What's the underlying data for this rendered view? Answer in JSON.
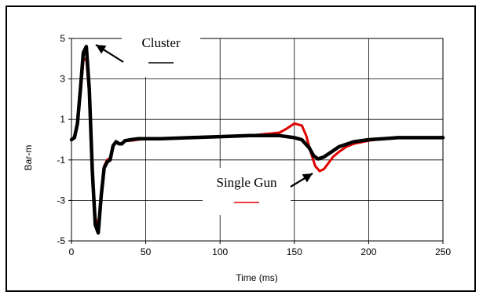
{
  "chart_data": {
    "type": "line",
    "title": "",
    "xlabel": "Time (ms)",
    "ylabel": "Bar-m",
    "xlim": [
      0,
      250
    ],
    "ylim": [
      -5,
      5
    ],
    "xticks": [
      "0",
      "50",
      "100",
      "150",
      "200",
      "250"
    ],
    "yticks": [
      "5",
      "3",
      "1",
      "-1",
      "-3",
      "-5"
    ],
    "grid": true,
    "legend": "inside, upper-left and center-right",
    "series": [
      {
        "name": "Cluster",
        "color": "#000000",
        "x": [
          0,
          2,
          4,
          6,
          8,
          10,
          12,
          14,
          16,
          18,
          20,
          22,
          24,
          26,
          28,
          30,
          32,
          34,
          36,
          40,
          45,
          50,
          60,
          80,
          100,
          120,
          140,
          150,
          155,
          160,
          163,
          166,
          170,
          175,
          180,
          190,
          200,
          210,
          220,
          235,
          250
        ],
        "y": [
          0,
          0.1,
          0.8,
          2.5,
          4.3,
          4.6,
          2.5,
          -1.5,
          -4.2,
          -4.6,
          -2.8,
          -1.4,
          -1.1,
          -1.0,
          -0.3,
          -0.1,
          -0.2,
          -0.2,
          -0.05,
          0,
          0.05,
          0.05,
          0.05,
          0.1,
          0.15,
          0.2,
          0.2,
          0.1,
          0,
          -0.4,
          -0.8,
          -0.95,
          -0.85,
          -0.6,
          -0.35,
          -0.1,
          0,
          0.05,
          0.1,
          0.1,
          0.1
        ]
      },
      {
        "name": "Single Gun",
        "color": "#e00000",
        "x": [
          0,
          2,
          4,
          6,
          8,
          10,
          12,
          14,
          16,
          18,
          20,
          22,
          24,
          26,
          28,
          30,
          32,
          34,
          36,
          40,
          45,
          50,
          60,
          80,
          100,
          120,
          140,
          145,
          150,
          155,
          158,
          161,
          164,
          167,
          170,
          173,
          176,
          180,
          185,
          190,
          200,
          210,
          220,
          235,
          250
        ],
        "y": [
          0,
          0.1,
          0.7,
          2.2,
          3.9,
          4.0,
          2.2,
          -1.4,
          -3.8,
          -4.4,
          -2.6,
          -1.3,
          -1.0,
          -0.9,
          -0.3,
          -0.1,
          -0.2,
          -0.2,
          -0.05,
          -0.05,
          0,
          0.05,
          0.05,
          0.1,
          0.15,
          0.2,
          0.35,
          0.55,
          0.8,
          0.7,
          0.2,
          -0.6,
          -1.3,
          -1.55,
          -1.45,
          -1.15,
          -0.85,
          -0.6,
          -0.35,
          -0.2,
          -0.05,
          0.05,
          0.1,
          0.1,
          0.1
        ]
      }
    ],
    "annotations": [
      {
        "text": "Cluster",
        "target_series": "Cluster"
      },
      {
        "text": "Single Gun",
        "target_series": "Single Gun"
      }
    ]
  }
}
